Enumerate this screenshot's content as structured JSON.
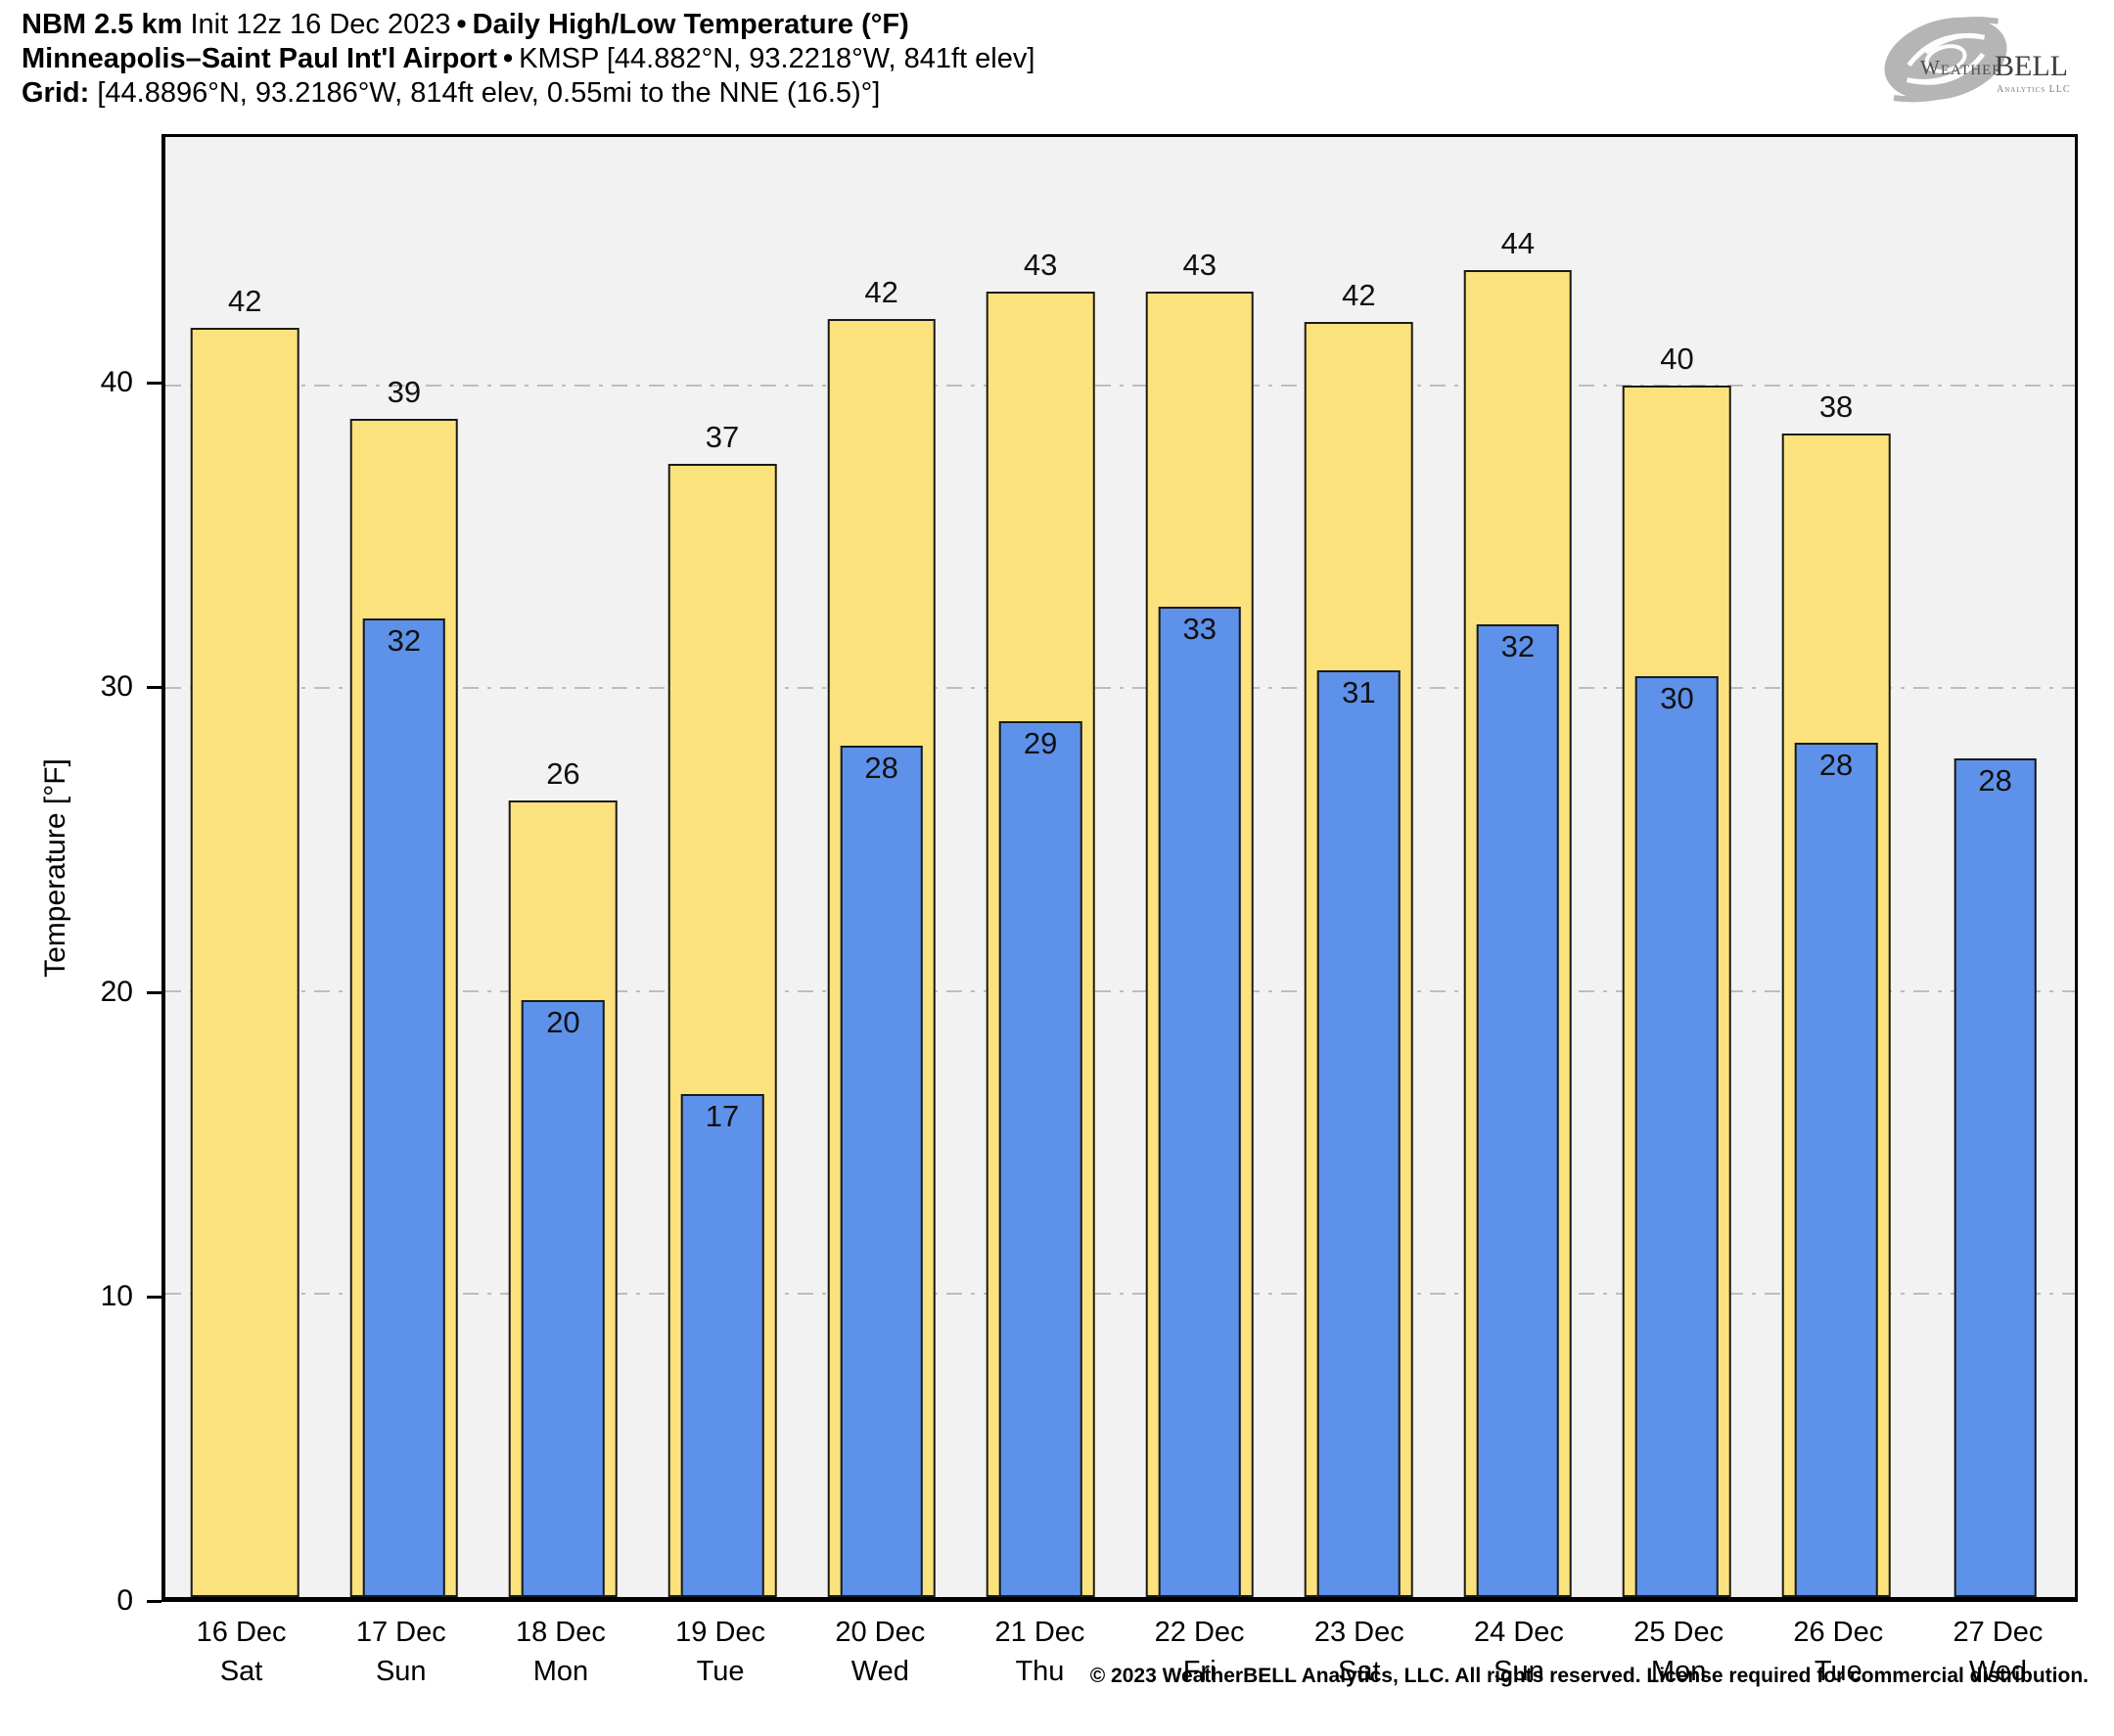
{
  "header": {
    "model": "NBM 2.5 km",
    "init": "Init 12z 16 Dec 2023",
    "sep": "•",
    "product": "Daily High/Low Temperature (°F)",
    "station": "Minneapolis–Saint Paul Int'l Airport",
    "station_meta": "KMSP [44.882°N, 93.2218°W, 841ft elev]",
    "grid_label": "Grid:",
    "grid_meta": "[44.8896°N, 93.2186°W, 814ft elev, 0.55mi to the NNE (16.5)°]"
  },
  "logo": {
    "brand_weather": "Weather",
    "brand_bell": "BELL",
    "subtitle": "Analytics LLC"
  },
  "chart_data": {
    "type": "bar",
    "title": "NBM 2.5 km Daily High/Low Temperature (°F) — KMSP",
    "ylabel": "Temperature [°F]",
    "ylim": [
      0,
      48.2
    ],
    "yticks": [
      0,
      10,
      20,
      30,
      40
    ],
    "ytick_labels": [
      "0",
      "10",
      "20",
      "30",
      "40"
    ],
    "grid": "horizontal dash-dot gridlines at 10, 20, 30, 40",
    "legend": "none (yellow = daily high, blue = daily low)",
    "categories": [
      "16 Dec Sat",
      "17 Dec Sun",
      "18 Dec Mon",
      "19 Dec Tue",
      "20 Dec Wed",
      "21 Dec Thu",
      "22 Dec Fri",
      "23 Dec Sat",
      "24 Dec Sun",
      "25 Dec Mon",
      "26 Dec Tue",
      "27 Dec Wed"
    ],
    "series": [
      {
        "name": "High",
        "color": "#fbe27d",
        "values": [
          42,
          39,
          26,
          37,
          42,
          43,
          43,
          42,
          44,
          40,
          38,
          null
        ]
      },
      {
        "name": "Low",
        "color": "#5e91e9",
        "values": [
          null,
          32,
          20,
          17,
          28,
          29,
          33,
          31,
          32,
          30,
          28,
          28
        ]
      }
    ],
    "days": [
      {
        "date": "16 Dec",
        "dow": "Sat",
        "high": 41.9,
        "high_label": "42",
        "low": null,
        "low_label": null
      },
      {
        "date": "17 Dec",
        "dow": "Sun",
        "high": 38.9,
        "high_label": "39",
        "low": 32.3,
        "low_label": "32"
      },
      {
        "date": "18 Dec",
        "dow": "Mon",
        "high": 26.3,
        "high_label": "26",
        "low": 19.7,
        "low_label": "20"
      },
      {
        "date": "19 Dec",
        "dow": "Tue",
        "high": 37.4,
        "high_label": "37",
        "low": 16.6,
        "low_label": "17"
      },
      {
        "date": "20 Dec",
        "dow": "Wed",
        "high": 42.2,
        "high_label": "42",
        "low": 28.1,
        "low_label": "28"
      },
      {
        "date": "21 Dec",
        "dow": "Thu",
        "high": 43.1,
        "high_label": "43",
        "low": 28.9,
        "low_label": "29"
      },
      {
        "date": "22 Dec",
        "dow": "Fri",
        "high": 43.1,
        "high_label": "43",
        "low": 32.7,
        "low_label": "33"
      },
      {
        "date": "23 Dec",
        "dow": "Sat",
        "high": 42.1,
        "high_label": "42",
        "low": 30.6,
        "low_label": "31"
      },
      {
        "date": "24 Dec",
        "dow": "Sun",
        "high": 43.8,
        "high_label": "44",
        "low": 32.1,
        "low_label": "32"
      },
      {
        "date": "25 Dec",
        "dow": "Mon",
        "high": 40.0,
        "high_label": "40",
        "low": 30.4,
        "low_label": "30"
      },
      {
        "date": "26 Dec",
        "dow": "Tue",
        "high": 38.4,
        "high_label": "38",
        "low": 28.2,
        "low_label": "28"
      },
      {
        "date": "27 Dec",
        "dow": "Wed",
        "high": null,
        "high_label": null,
        "low": 27.7,
        "low_label": "28"
      }
    ]
  },
  "colors": {
    "high_fill": "#fbe27d",
    "low_fill": "#5e91e9",
    "bar_border": "#1a1a1a",
    "plot_bg": "#f2f2f2",
    "grid": "#bdbdbd",
    "logo_gray": "#b5b5b5"
  },
  "footer": {
    "copyright": "© 2023 WeatherBELL Analytics, LLC. All rights reserved. License required for commercial distribution."
  }
}
